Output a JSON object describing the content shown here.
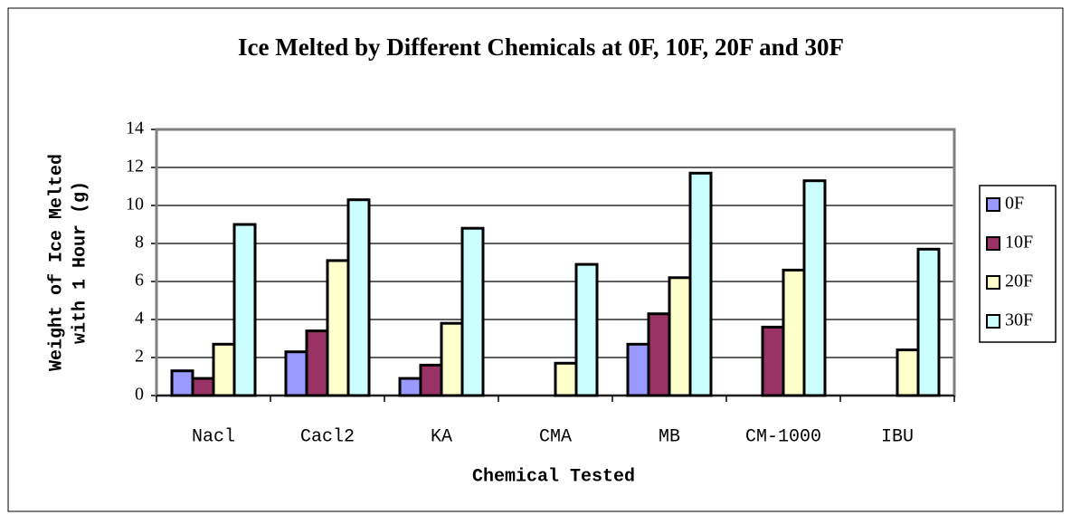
{
  "chart_data": {
    "type": "bar",
    "title": "Ice Melted by Different Chemicals at 0F, 10F, 20F and 30F",
    "ylabel": [
      "Weight of Ice Melted",
      "with 1 Hour (g)"
    ],
    "xlabel": "Chemical Tested",
    "categories": [
      "Nacl",
      "Cacl2",
      "KA",
      "CMA",
      "MB",
      "CM-1000",
      "IBU"
    ],
    "series": [
      {
        "name": "0F",
        "color": "#9999ff",
        "values": [
          1.3,
          2.3,
          0.9,
          null,
          2.7,
          null,
          null
        ]
      },
      {
        "name": "10F",
        "color": "#993366",
        "values": [
          0.9,
          3.4,
          1.6,
          null,
          4.3,
          3.6,
          null
        ]
      },
      {
        "name": "20F",
        "color": "#ffffcc",
        "values": [
          2.7,
          7.1,
          3.8,
          1.7,
          6.2,
          6.6,
          2.4
        ]
      },
      {
        "name": "30F",
        "color": "#ccffff",
        "values": [
          9.0,
          10.3,
          8.8,
          6.9,
          11.7,
          11.3,
          7.7
        ]
      }
    ],
    "ylim": [
      0,
      14
    ],
    "yticks": [
      0,
      2,
      4,
      6,
      8,
      10,
      12,
      14
    ],
    "grid": true,
    "legend": "right"
  }
}
